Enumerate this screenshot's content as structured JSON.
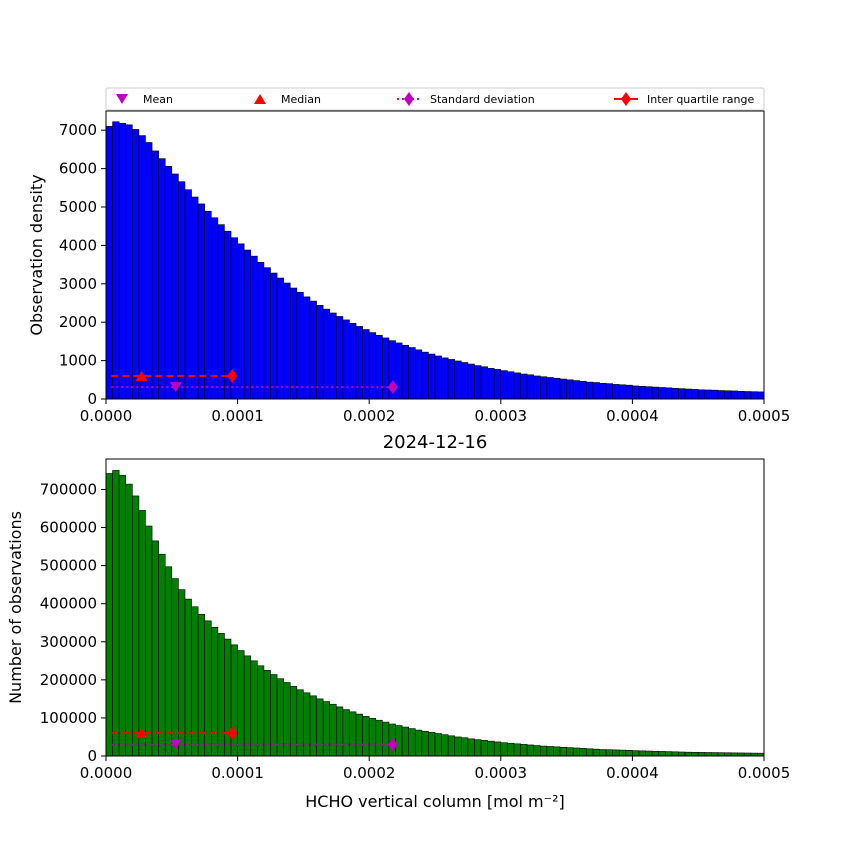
{
  "figure": {
    "title": "2024-12-16",
    "legend": {
      "placement": "top",
      "entries": [
        {
          "label": "Mean",
          "marker": "triangle-down",
          "color": "#bf00bf"
        },
        {
          "label": "Median",
          "marker": "triangle-up",
          "color": "#ff0000"
        },
        {
          "label": "Standard deviation",
          "marker": "diamond",
          "line": "dotted",
          "color": "#bf00bf"
        },
        {
          "label": "Inter quartile range",
          "marker": "diamond",
          "line": "solid",
          "color": "#ff0000"
        }
      ]
    }
  },
  "chart_data": [
    {
      "type": "bar",
      "panel": "top",
      "xlabel": "",
      "ylabel": "Observation density",
      "xlim": [
        0,
        0.0005
      ],
      "ylim": [
        0,
        7500
      ],
      "xticks": [
        "0.0000",
        "0.0001",
        "0.0002",
        "0.0003",
        "0.0004",
        "0.0005"
      ],
      "yticks": [
        "0",
        "1000",
        "2000",
        "3000",
        "4000",
        "5000",
        "6000",
        "7000"
      ],
      "bar_color": "#0000ff",
      "bin_width": 5e-06,
      "values": [
        7100,
        7220,
        7180,
        7140,
        7020,
        6860,
        6680,
        6460,
        6260,
        6060,
        5860,
        5660,
        5450,
        5260,
        5080,
        4890,
        4720,
        4540,
        4370,
        4200,
        4040,
        3880,
        3720,
        3560,
        3420,
        3280,
        3150,
        3020,
        2890,
        2780,
        2660,
        2550,
        2440,
        2340,
        2240,
        2150,
        2060,
        1970,
        1890,
        1810,
        1730,
        1660,
        1590,
        1520,
        1460,
        1400,
        1340,
        1280,
        1220,
        1170,
        1120,
        1070,
        1030,
        990,
        950,
        910,
        870,
        840,
        800,
        770,
        740,
        710,
        680,
        650,
        630,
        600,
        580,
        560,
        540,
        520,
        500,
        480,
        460,
        440,
        430,
        410,
        400,
        380,
        370,
        360,
        340,
        330,
        320,
        310,
        300,
        290,
        280,
        270,
        260,
        250,
        240,
        235,
        230,
        220,
        215,
        210,
        200,
        195,
        190,
        185
      ],
      "markers": {
        "mean": {
          "x": 5.3e-05,
          "y": 310
        },
        "median": {
          "x": 2.7e-05,
          "y": 600
        },
        "std": {
          "x_range": [
            4e-06,
            0.000218
          ],
          "y": 310
        },
        "iqr": {
          "x_range": [
            4e-06,
            9.6e-05
          ],
          "y": 600
        }
      }
    },
    {
      "type": "bar",
      "panel": "bottom",
      "xlabel": "HCHO vertical column [mol m⁻²]",
      "ylabel": "Number of observations",
      "xlim": [
        0,
        0.0005
      ],
      "ylim": [
        0,
        780000
      ],
      "xticks": [
        "0.0000",
        "0.0001",
        "0.0002",
        "0.0003",
        "0.0004",
        "0.0005"
      ],
      "yticks": [
        "0",
        "100000",
        "200000",
        "300000",
        "400000",
        "500000",
        "600000",
        "700000"
      ],
      "bar_color": "#008000",
      "bin_width": 5e-06,
      "values": [
        742000,
        750000,
        737000,
        714000,
        683000,
        645000,
        604000,
        565000,
        530000,
        497000,
        466000,
        437000,
        412000,
        392000,
        372000,
        355000,
        338000,
        322000,
        307000,
        292000,
        277000,
        263000,
        250000,
        237000,
        225000,
        214000,
        203000,
        193000,
        183000,
        174000,
        166000,
        158000,
        150000,
        143000,
        136000,
        129000,
        122000,
        116000,
        110000,
        104000,
        99000,
        94000,
        89000,
        84000,
        80000,
        76000,
        72000,
        68000,
        65000,
        62000,
        59000,
        56000,
        53000,
        50000,
        48000,
        45000,
        43000,
        41000,
        39000,
        37000,
        35000,
        33500,
        32000,
        30500,
        29000,
        27500,
        26000,
        25000,
        24000,
        23000,
        22000,
        21000,
        20000,
        19000,
        18000,
        17000,
        16500,
        16000,
        15500,
        15000,
        14000,
        13500,
        13000,
        12500,
        12000,
        11500,
        11000,
        10500,
        10000,
        9800,
        9500,
        9200,
        9000,
        8700,
        8500,
        8200,
        8000,
        7800,
        7600,
        7400
      ],
      "markers": {
        "mean": {
          "x": 5.3e-05,
          "y": 30000
        },
        "median": {
          "x": 2.7e-05,
          "y": 60000
        },
        "std": {
          "x_range": [
            4e-06,
            0.000218
          ],
          "y": 30000
        },
        "iqr": {
          "x_range": [
            4e-06,
            9.6e-05
          ],
          "y": 60000
        }
      }
    }
  ]
}
